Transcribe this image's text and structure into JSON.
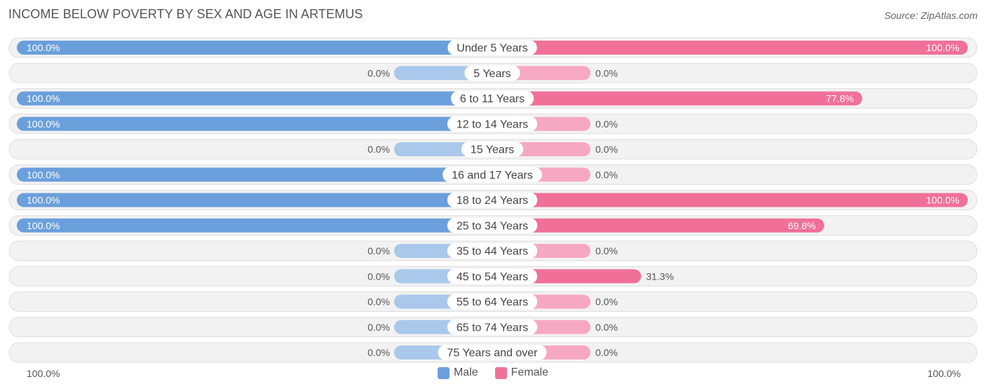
{
  "title": "INCOME BELOW POVERTY BY SEX AND AGE IN ARTEMUS",
  "source": "Source: ZipAtlas.com",
  "axis_left_label": "100.0%",
  "axis_right_label": "100.0%",
  "legend": {
    "male_label": "Male",
    "female_label": "Female"
  },
  "colors": {
    "male_strong": "#6a9fdc",
    "male_light": "#a9c8ec",
    "female_strong": "#f07098",
    "female_light": "#f6a8c2",
    "row_bg": "#f2f2f2",
    "row_border": "#dddddd"
  },
  "chart_data": {
    "type": "bar",
    "orientation": "horizontal-diverging",
    "title": "INCOME BELOW POVERTY BY SEX AND AGE IN ARTEMUS",
    "xlim": [
      0,
      100
    ],
    "categories": [
      "Under 5 Years",
      "5 Years",
      "6 to 11 Years",
      "12 to 14 Years",
      "15 Years",
      "16 and 17 Years",
      "18 to 24 Years",
      "25 to 34 Years",
      "35 to 44 Years",
      "45 to 54 Years",
      "55 to 64 Years",
      "65 to 74 Years",
      "75 Years and over"
    ],
    "series": [
      {
        "name": "Male",
        "values": [
          100.0,
          0.0,
          100.0,
          100.0,
          0.0,
          100.0,
          100.0,
          100.0,
          0.0,
          0.0,
          0.0,
          0.0,
          0.0
        ],
        "labels": [
          "100.0%",
          "0.0%",
          "100.0%",
          "100.0%",
          "0.0%",
          "100.0%",
          "100.0%",
          "100.0%",
          "0.0%",
          "0.0%",
          "0.0%",
          "0.0%",
          "0.0%"
        ]
      },
      {
        "name": "Female",
        "values": [
          100.0,
          0.0,
          77.8,
          0.0,
          0.0,
          0.0,
          100.0,
          69.8,
          0.0,
          31.3,
          0.0,
          0.0,
          0.0
        ],
        "labels": [
          "100.0%",
          "0.0%",
          "77.8%",
          "0.0%",
          "0.0%",
          "0.0%",
          "100.0%",
          "69.8%",
          "0.0%",
          "31.3%",
          "0.0%",
          "0.0%",
          "0.0%"
        ]
      }
    ]
  }
}
